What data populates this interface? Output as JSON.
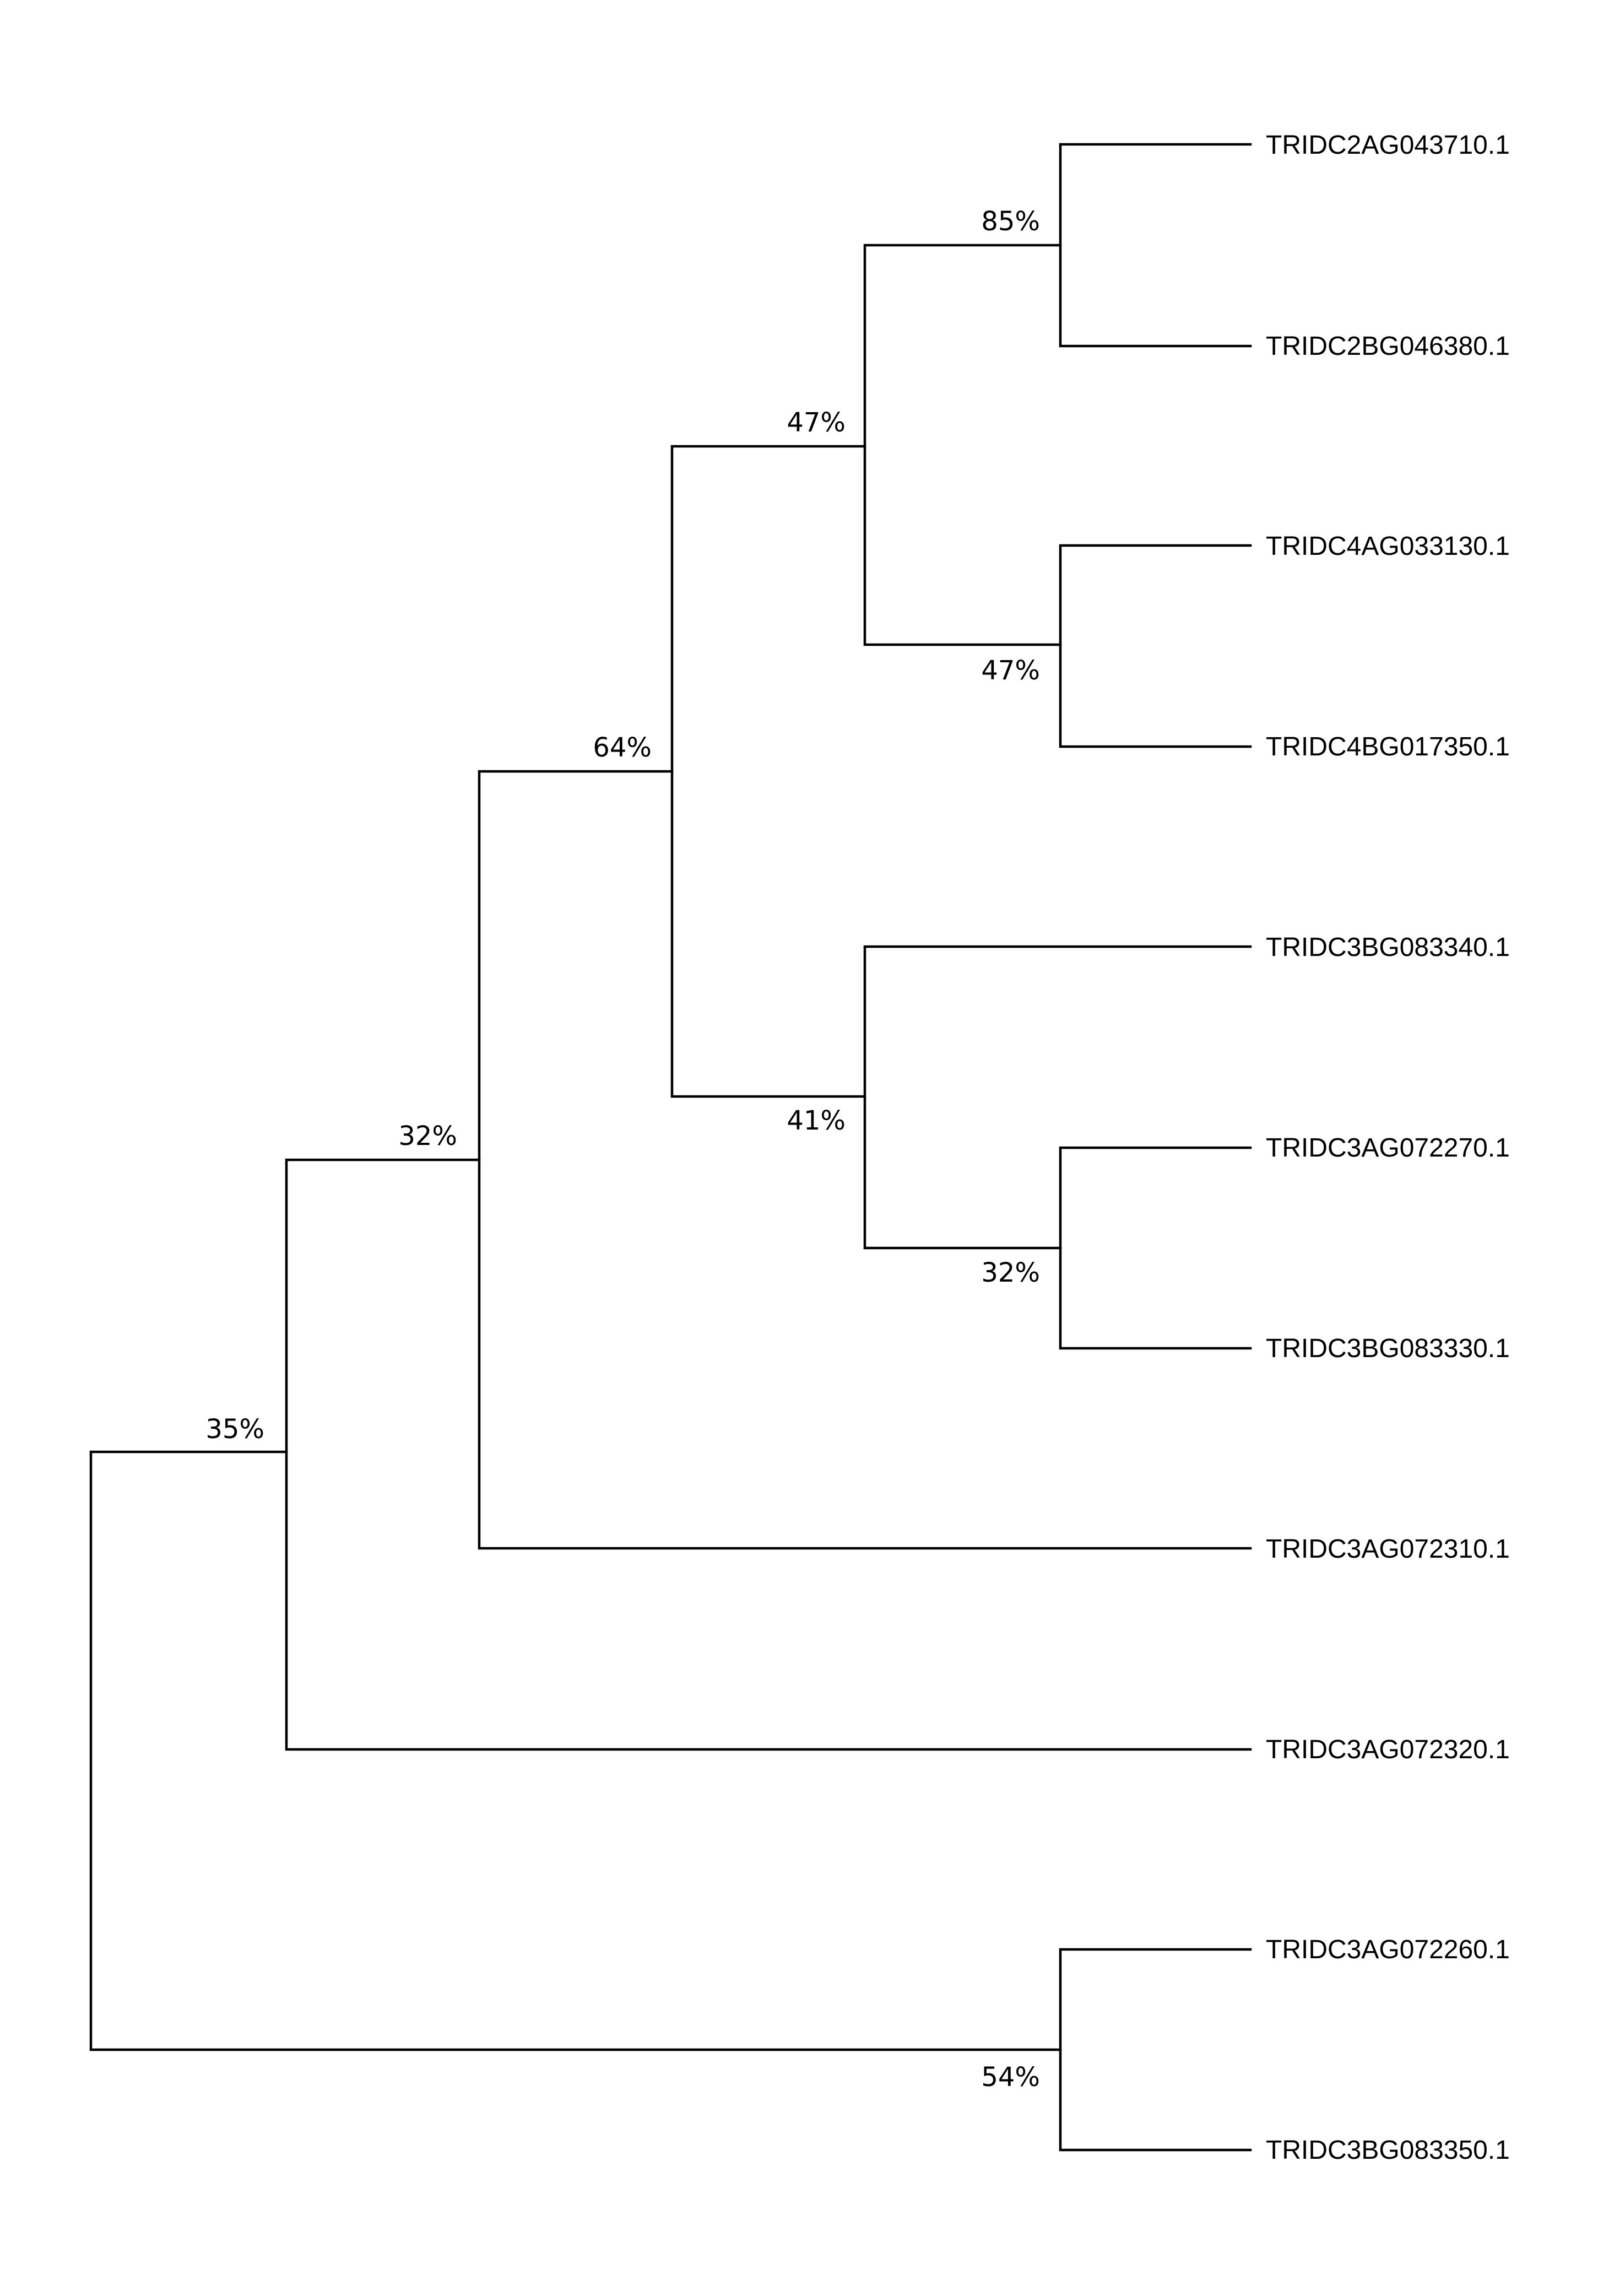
{
  "tree": {
    "tips": [
      "TRIDC2AG043710.1",
      "TRIDC2BG046380.1",
      "TRIDC4AG033130.1",
      "TRIDC4BG017350.1",
      "TRIDC3BG083340.1",
      "TRIDC3AG072270.1",
      "TRIDC3BG083330.1",
      "TRIDC3AG072310.1",
      "TRIDC3AG072320.1",
      "TRIDC3AG072260.1",
      "TRIDC3BG083350.1"
    ],
    "support": {
      "root": "35%",
      "n32_outer": "32%",
      "n64": "64%",
      "n47_upper": "47%",
      "n85": "85%",
      "n47_lower": "47%",
      "n41": "41%",
      "n32_inner": "32%",
      "n54": "54%"
    },
    "line_color": "#000000",
    "background": "#ffffff"
  }
}
